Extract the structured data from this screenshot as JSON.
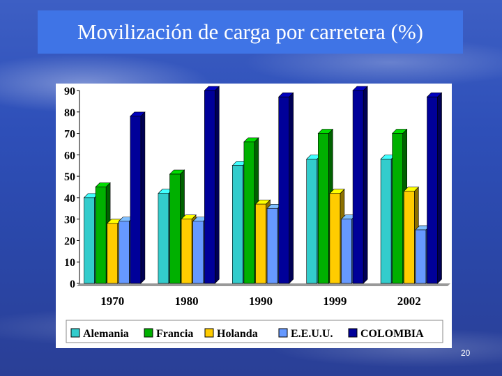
{
  "slide": {
    "title": "Movilización de carga por carretera (%)",
    "number": "20"
  },
  "chart_data": {
    "type": "bar",
    "title": "",
    "xlabel": "",
    "ylabel": "",
    "categories": [
      "1970",
      "1980",
      "1990",
      "1999",
      "2002"
    ],
    "ylim": [
      0,
      90
    ],
    "yticks": [
      "0",
      "10",
      "20",
      "30",
      "40",
      "50",
      "60",
      "70",
      "80",
      "90"
    ],
    "legend_position": "bottom",
    "series": [
      {
        "name": "Alemania",
        "color": "#33cccc",
        "values": [
          40,
          42,
          55,
          58,
          58
        ]
      },
      {
        "name": "Francia",
        "color": "#00b000",
        "values": [
          45,
          51,
          66,
          70,
          70
        ]
      },
      {
        "name": "Holanda",
        "color": "#ffcc00",
        "values": [
          28,
          30,
          37,
          42,
          43
        ]
      },
      {
        "name": "E.E.U.U.",
        "color": "#6699ff",
        "values": [
          29,
          29,
          35,
          30,
          25
        ]
      },
      {
        "name": "COLOMBIA",
        "color": "#000099",
        "values": [
          78,
          90,
          87,
          90,
          87
        ]
      }
    ]
  }
}
